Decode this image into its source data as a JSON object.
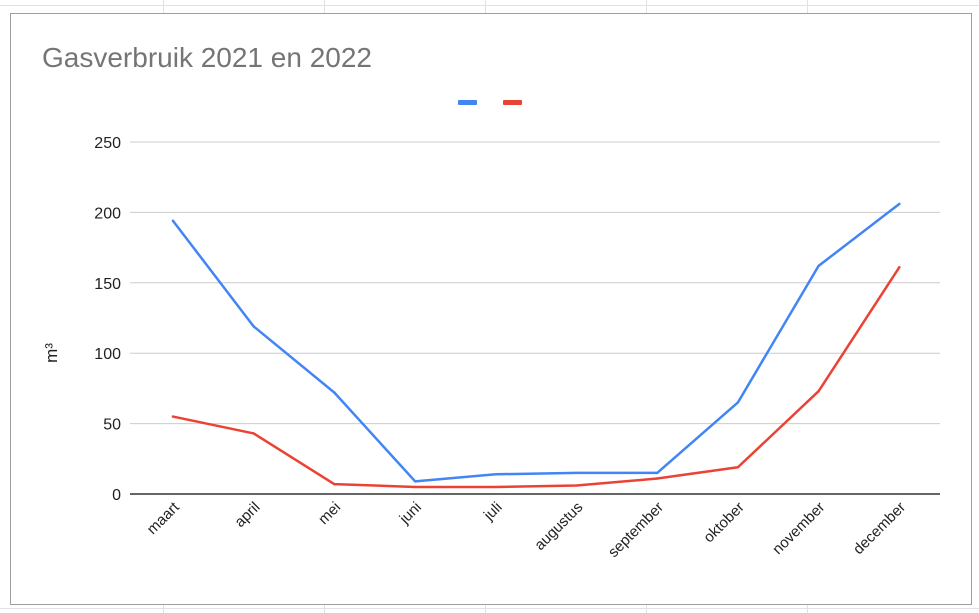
{
  "colors": {
    "series_2021": "#4285f4",
    "series_2022": "#ea4335",
    "grid": "#cccccc",
    "baseline": "#333333",
    "title": "#757575"
  },
  "chart_data": {
    "type": "line",
    "title": "Gasverbruik 2021 en 2022",
    "xlabel": "",
    "ylabel": "m³",
    "categories": [
      "maart",
      "april",
      "mei",
      "juni",
      "juli",
      "augustus",
      "september",
      "oktober",
      "november",
      "december"
    ],
    "y_ticks": [
      "0",
      "50",
      "100",
      "150",
      "200",
      "250"
    ],
    "ylim": [
      0,
      250
    ],
    "grid": true,
    "legend": "top",
    "series": [
      {
        "values": [
          194,
          119,
          72,
          9,
          14,
          15,
          15,
          65,
          162,
          206
        ]
      },
      {
        "values": [
          55,
          43,
          7,
          5,
          5,
          6,
          11,
          19,
          73,
          161
        ]
      }
    ]
  }
}
